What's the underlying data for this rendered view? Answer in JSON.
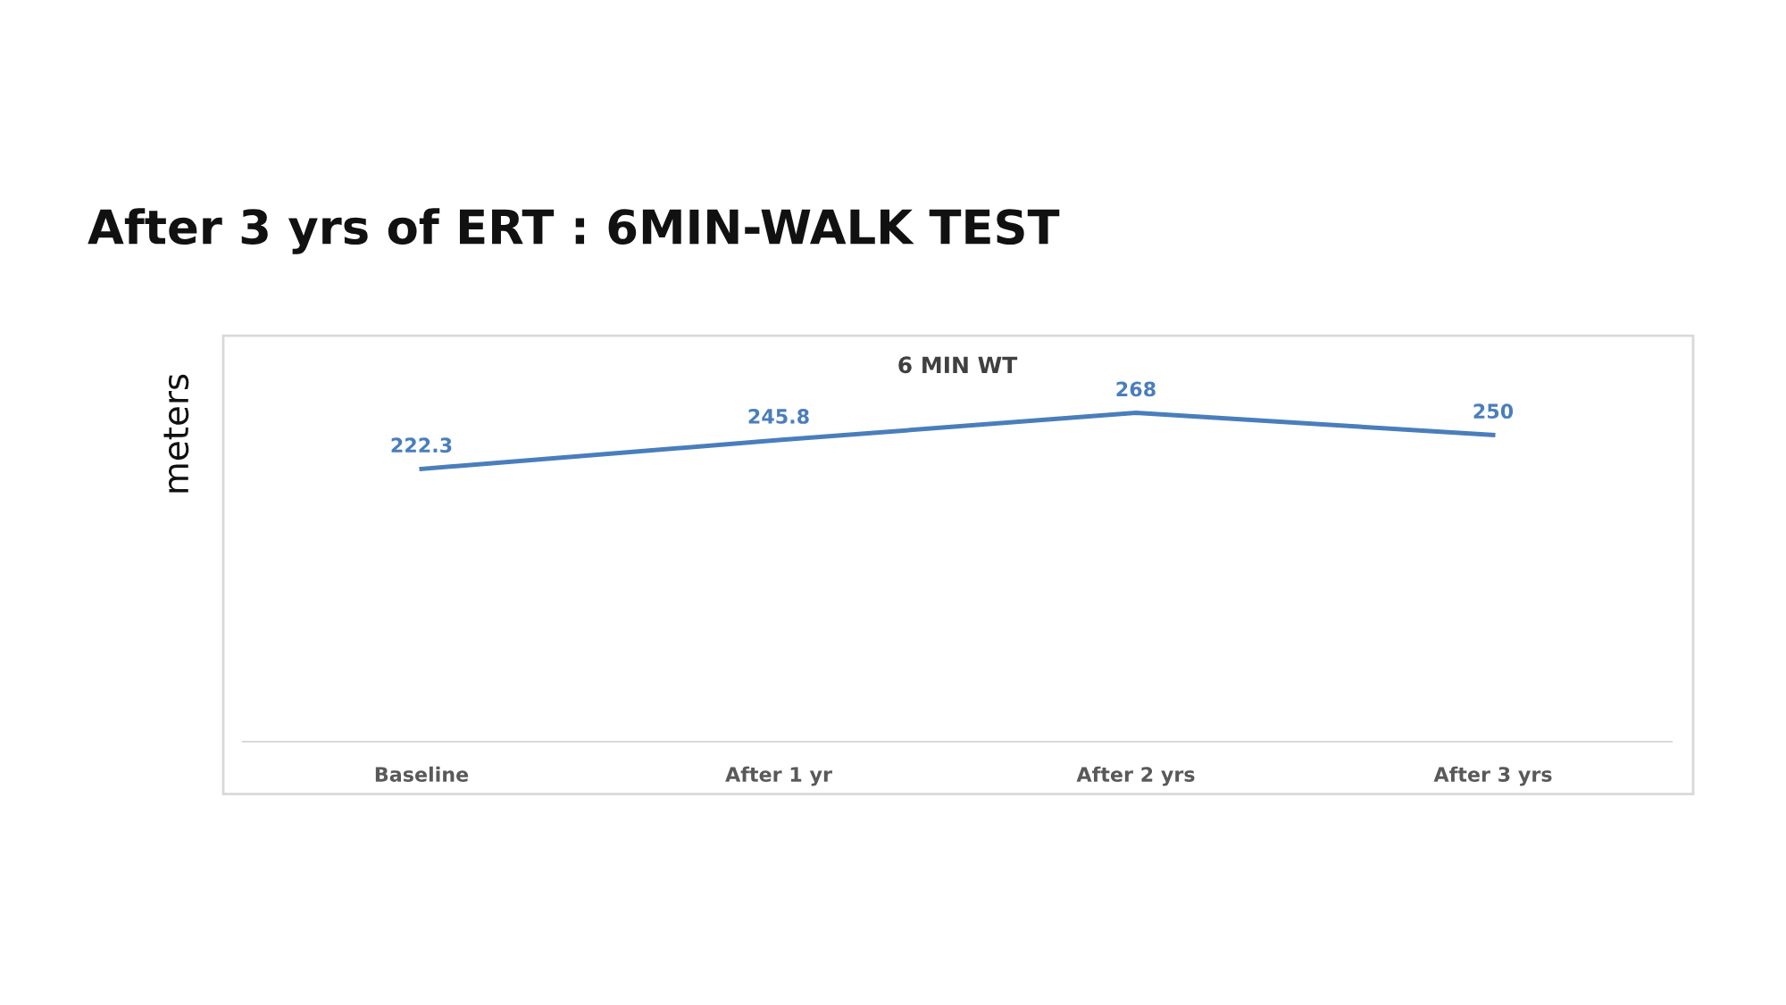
{
  "chart_data": {
    "type": "line",
    "title": "After 3 yrs of ERT : 6MIN-WALK TEST",
    "subtitle": "6 MIN WT",
    "ylabel": "meters",
    "categories": [
      "Baseline",
      "After 1 yr",
      "After 2 yrs",
      "After 3 yrs"
    ],
    "series": [
      {
        "color": "#4a7ebb",
        "values": [
          222.3,
          245.8,
          268,
          250
        ]
      }
    ],
    "data_labels": true,
    "grid": false,
    "legend": false,
    "marker": "none",
    "line_style": "solid"
  }
}
